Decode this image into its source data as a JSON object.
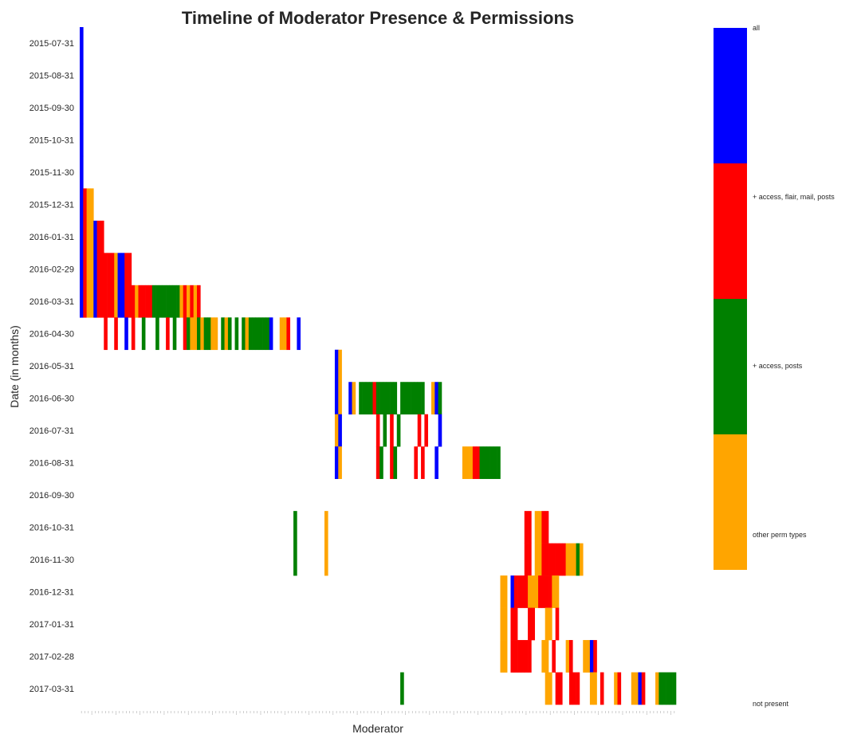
{
  "chart_data": {
    "type": "heatmap",
    "title": "Timeline of Moderator Presence & Permissions",
    "xlabel": "Moderator",
    "ylabel": "Date (in months)",
    "y_categories": [
      "2015-07-31",
      "2015-08-31",
      "2015-09-30",
      "2015-10-31",
      "2015-11-30",
      "2015-12-31",
      "2016-01-31",
      "2016-02-29",
      "2016-03-31",
      "2016-04-30",
      "2016-05-31",
      "2016-06-30",
      "2016-07-31",
      "2016-08-31",
      "2016-09-30",
      "2016-10-31",
      "2016-11-30",
      "2016-12-31",
      "2017-01-31",
      "2017-02-28",
      "2017-03-31"
    ],
    "legend": [
      {
        "label": "all",
        "color": "#0000ff"
      },
      {
        "label": "+ access, flair, mail, posts",
        "color": "#ff0000"
      },
      {
        "label": "+ access, posts",
        "color": "#008000"
      },
      {
        "label": "other perm types",
        "color": "#ffa500"
      },
      {
        "label": "not present",
        "color": "#ffffff"
      }
    ],
    "moderator_count": 173,
    "code_legend": {
      "B": "all",
      "R": "+ access, flair, mail, posts",
      "G": "+ access, posts",
      "O": "other perm types",
      ".": "not present"
    },
    "moderator_rows": [
      "B................................................................................................................................................................................",
      "B................................................................................................................................................................................",
      "B................................................................................................................................................................................",
      "B................................................................................................................................................................................",
      "B................................................................................................................................................................................",
      "BROO.............................................................................................................................................................................",
      "BROOBRR..........................................................................................................................................................................",
      "BROOBRRRRROBBRR..................................................................................................................................................................",
      "BROOBRRRRROBBRRRORRRRGGGGGGGGOROROR..............................................................................................................................................",
      ".......R..R..B.R..G...G..R.G..RGOOGOGGOO.GOG.G.GOGGGGGGB..OOR..B..................................................................................................................",
      "..........................................................................BO.....................................................................................................",
      "..........................................................................BO..BO.GGGGRGGGGGG.GGGGGGG..OBG.........................................................................",
      "..........................................................................OB..........R.G.R.G.....R.R...B.........................................................................",
      "..........................................................................BO..........RG..RG.....R.R...B.......OOORRGGGGGG.......................................................",
      "..................................................................................................................................................................................",
      "..............................................................G........O.........................................................RR.OORR.......................................",
      "..............................................................G........O.........................................................RR.OORRRRRRROOOGO...............................",
      "..........................................................................................................................OO.BRRRROOORRRROO.....................................",
      "..........................................................................................................................OO.RR...RR...OO.R.....................................",
      "..........................................................................................................................OO.RRRRRR...OO.R...OR...OOBR..........................",
      ".............................................................................................G.........................................OO.RR..RRR...OO.R...OR...OOBR...OGGGGG..GGG.."
    ]
  }
}
